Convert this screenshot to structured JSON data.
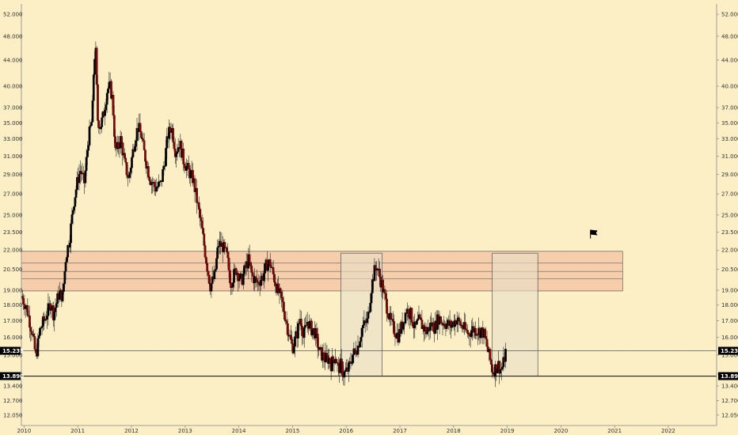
{
  "chart_data": {
    "type": "candlestick",
    "title": "",
    "xlabel": "",
    "ylabel": "",
    "y_scale": "log",
    "ylim": [
      11.6,
      54.0
    ],
    "x_range_years": [
      2009.95,
      2022.9
    ],
    "grid": false,
    "legend": "none",
    "y_ticks": [
      "52.000",
      "48.000",
      "44.000",
      "40.000",
      "37.000",
      "35.000",
      "33.000",
      "31.000",
      "29.000",
      "27.000",
      "25.000",
      "23.500",
      "22.000",
      "20.500",
      "19.000",
      "18.000",
      "17.000",
      "16.000",
      "15.000",
      "14.000",
      "13.400",
      "12.700",
      "12.050"
    ],
    "y_tick_values": [
      52,
      48,
      44,
      40,
      37,
      35,
      33,
      31,
      29,
      27,
      25,
      23.5,
      22,
      20.5,
      19,
      18,
      17,
      16,
      15,
      14,
      13.4,
      12.7,
      12.05
    ],
    "x_ticks": [
      "2010",
      "2011",
      "2012",
      "2013",
      "2014",
      "2015",
      "2016",
      "2017",
      "2018",
      "2019",
      "2020",
      "2021",
      "2022"
    ],
    "x_tick_values": [
      2010,
      2011,
      2012,
      2013,
      2014,
      2015,
      2016,
      2017,
      2018,
      2019,
      2020,
      2021,
      2022
    ],
    "horizontal_levels": [
      {
        "label": "15.235",
        "value": 15.235,
        "tag_color": "#000000",
        "line_color": "#555555"
      },
      {
        "label": "13.890",
        "value": 13.89,
        "tag_color": "#000000",
        "line_color": "#222222"
      }
    ],
    "resistance_zone": {
      "x0": 2009.95,
      "x1": 2021.15,
      "levels": [
        21.9,
        21.0,
        20.35,
        19.8,
        18.95
      ],
      "fill": "#f4c8a6",
      "line_color": "#666666"
    },
    "boxes": [
      {
        "x0": 2015.9,
        "x1": 2016.67,
        "y0": 13.89,
        "y1": 21.75
      },
      {
        "x0": 2018.72,
        "x1": 2019.57,
        "y0": 13.89,
        "y1": 21.75
      }
    ],
    "flag_marker": {
      "x": 2020.55,
      "y": 23.35
    },
    "colors": {
      "background": "#fcefc5",
      "up_body": "#000000",
      "down_body": "#8b0000",
      "axis": "#888888"
    },
    "anchor_prices": [
      [
        2009.95,
        18.6
      ],
      [
        2010.05,
        17.8
      ],
      [
        2010.15,
        16.3
      ],
      [
        2010.22,
        14.9
      ],
      [
        2010.3,
        16.5
      ],
      [
        2010.4,
        17.2
      ],
      [
        2010.5,
        18.2
      ],
      [
        2010.55,
        17.4
      ],
      [
        2010.65,
        18.8
      ],
      [
        2010.72,
        18.6
      ],
      [
        2010.78,
        21.5
      ],
      [
        2010.85,
        23.0
      ],
      [
        2010.92,
        26.0
      ],
      [
        2011.0,
        28.5
      ],
      [
        2011.05,
        29.5
      ],
      [
        2011.12,
        28.0
      ],
      [
        2011.2,
        33.0
      ],
      [
        2011.27,
        35.5
      ],
      [
        2011.3,
        43.0
      ],
      [
        2011.33,
        46.5
      ],
      [
        2011.37,
        35.5
      ],
      [
        2011.42,
        34.5
      ],
      [
        2011.48,
        36.0
      ],
      [
        2011.55,
        39.5
      ],
      [
        2011.6,
        40.0
      ],
      [
        2011.65,
        38.0
      ],
      [
        2011.7,
        31.5
      ],
      [
        2011.75,
        32.0
      ],
      [
        2011.8,
        33.0
      ],
      [
        2011.88,
        30.0
      ],
      [
        2011.95,
        28.5
      ],
      [
        2012.05,
        32.5
      ],
      [
        2012.12,
        34.5
      ],
      [
        2012.18,
        33.5
      ],
      [
        2012.25,
        31.0
      ],
      [
        2012.35,
        28.5
      ],
      [
        2012.45,
        27.6
      ],
      [
        2012.55,
        28.0
      ],
      [
        2012.62,
        30.5
      ],
      [
        2012.68,
        33.5
      ],
      [
        2012.75,
        34.5
      ],
      [
        2012.82,
        31.5
      ],
      [
        2012.9,
        32.5
      ],
      [
        2012.97,
        30.5
      ],
      [
        2013.05,
        29.5
      ],
      [
        2013.15,
        28.5
      ],
      [
        2013.25,
        25.5
      ],
      [
        2013.32,
        23.5
      ],
      [
        2013.4,
        21.0
      ],
      [
        2013.47,
        19.3
      ],
      [
        2013.55,
        20.0
      ],
      [
        2013.62,
        22.5
      ],
      [
        2013.7,
        22.3
      ],
      [
        2013.78,
        21.5
      ],
      [
        2013.85,
        19.5
      ],
      [
        2013.95,
        20.5
      ],
      [
        2014.05,
        19.6
      ],
      [
        2014.12,
        20.6
      ],
      [
        2014.18,
        21.2
      ],
      [
        2014.25,
        20.0
      ],
      [
        2014.35,
        19.5
      ],
      [
        2014.45,
        20.0
      ],
      [
        2014.52,
        20.9
      ],
      [
        2014.58,
        21.0
      ],
      [
        2014.65,
        20.0
      ],
      [
        2014.72,
        19.0
      ],
      [
        2014.8,
        18.3
      ],
      [
        2014.88,
        17.0
      ],
      [
        2014.95,
        16.0
      ],
      [
        2015.0,
        15.4
      ],
      [
        2015.08,
        16.2
      ],
      [
        2015.15,
        17.3
      ],
      [
        2015.2,
        16.0
      ],
      [
        2015.28,
        17.0
      ],
      [
        2015.35,
        16.5
      ],
      [
        2015.42,
        16.3
      ],
      [
        2015.5,
        15.2
      ],
      [
        2015.6,
        14.8
      ],
      [
        2015.68,
        14.8
      ],
      [
        2015.72,
        14.5
      ],
      [
        2015.8,
        15.0
      ],
      [
        2015.85,
        14.2
      ],
      [
        2015.9,
        14.5
      ],
      [
        2015.95,
        14.0
      ],
      [
        2016.0,
        14.1
      ],
      [
        2016.05,
        14.3
      ],
      [
        2016.12,
        15.0
      ],
      [
        2016.22,
        15.5
      ],
      [
        2016.3,
        16.6
      ],
      [
        2016.4,
        17.0
      ],
      [
        2016.47,
        19.2
      ],
      [
        2016.52,
        20.3
      ],
      [
        2016.57,
        20.8
      ],
      [
        2016.62,
        20.0
      ],
      [
        2016.67,
        19.3
      ],
      [
        2016.75,
        18.0
      ],
      [
        2016.82,
        17.0
      ],
      [
        2016.9,
        16.4
      ],
      [
        2016.97,
        16.1
      ],
      [
        2017.05,
        16.8
      ],
      [
        2017.12,
        17.7
      ],
      [
        2017.2,
        17.4
      ],
      [
        2017.28,
        16.5
      ],
      [
        2017.35,
        17.0
      ],
      [
        2017.42,
        16.7
      ],
      [
        2017.5,
        16.3
      ],
      [
        2017.58,
        16.8
      ],
      [
        2017.65,
        16.6
      ],
      [
        2017.72,
        17.2
      ],
      [
        2017.8,
        16.9
      ],
      [
        2017.88,
        16.8
      ],
      [
        2017.95,
        16.7
      ],
      [
        2018.05,
        17.1
      ],
      [
        2018.12,
        16.8
      ],
      [
        2018.2,
        16.5
      ],
      [
        2018.28,
        16.2
      ],
      [
        2018.35,
        16.5
      ],
      [
        2018.45,
        16.4
      ],
      [
        2018.55,
        16.3
      ],
      [
        2018.6,
        15.8
      ],
      [
        2018.65,
        15.1
      ],
      [
        2018.7,
        14.5
      ],
      [
        2018.73,
        14.1
      ],
      [
        2018.78,
        14.3
      ],
      [
        2018.83,
        14.5
      ],
      [
        2018.88,
        14.2
      ],
      [
        2018.92,
        14.4
      ],
      [
        2018.97,
        15.2
      ]
    ]
  }
}
